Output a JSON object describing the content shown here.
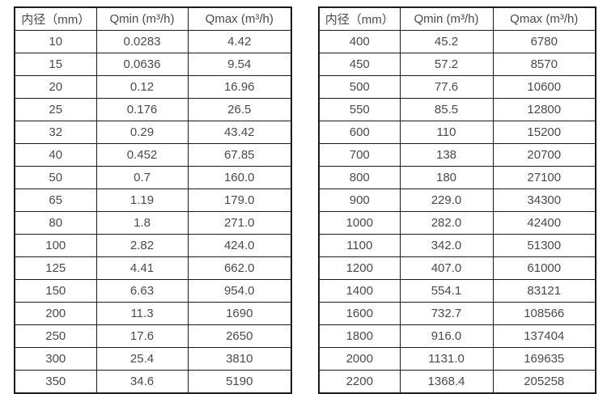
{
  "page": {
    "background_color": "#ffffff",
    "text_color": "#4a4a4a",
    "border_color": "#1c1c1c"
  },
  "chart_data": [
    {
      "type": "table",
      "title": "",
      "columns": [
        "内径（mm）",
        "Qmin (m³/h)",
        "Qmax (m³/h)"
      ],
      "rows": [
        [
          "10",
          "0.0283",
          "4.42"
        ],
        [
          "15",
          "0.0636",
          "9.54"
        ],
        [
          "20",
          "0.12",
          "16.96"
        ],
        [
          "25",
          "0.176",
          "26.5"
        ],
        [
          "32",
          "0.29",
          "43.42"
        ],
        [
          "40",
          "0.452",
          "67.85"
        ],
        [
          "50",
          "0.7",
          "160.0"
        ],
        [
          "65",
          "1.19",
          "179.0"
        ],
        [
          "80",
          "1.8",
          "271.0"
        ],
        [
          "100",
          "2.82",
          "424.0"
        ],
        [
          "125",
          "4.41",
          "662.0"
        ],
        [
          "150",
          "6.63",
          "954.0"
        ],
        [
          "200",
          "11.3",
          "1690"
        ],
        [
          "250",
          "17.6",
          "2650"
        ],
        [
          "300",
          "25.4",
          "3810"
        ],
        [
          "350",
          "34.6",
          "5190"
        ]
      ]
    },
    {
      "type": "table",
      "title": "",
      "columns": [
        "内径（mm）",
        "Qmin (m³/h)",
        "Qmax (m³/h)"
      ],
      "rows": [
        [
          "400",
          "45.2",
          "6780"
        ],
        [
          "450",
          "57.2",
          "8570"
        ],
        [
          "500",
          "77.6",
          "10600"
        ],
        [
          "550",
          "85.5",
          "12800"
        ],
        [
          "600",
          "110",
          "15200"
        ],
        [
          "700",
          "138",
          "20700"
        ],
        [
          "800",
          "180",
          "27100"
        ],
        [
          "900",
          "229.0",
          "34300"
        ],
        [
          "1000",
          "282.0",
          "42400"
        ],
        [
          "1100",
          "342.0",
          "51300"
        ],
        [
          "1200",
          "407.0",
          "61000"
        ],
        [
          "1400",
          "554.1",
          "83121"
        ],
        [
          "1600",
          "732.7",
          "108566"
        ],
        [
          "1800",
          "916.0",
          "137404"
        ],
        [
          "2000",
          "1131.0",
          "169635"
        ],
        [
          "2200",
          "1368.4",
          "205258"
        ]
      ]
    }
  ]
}
